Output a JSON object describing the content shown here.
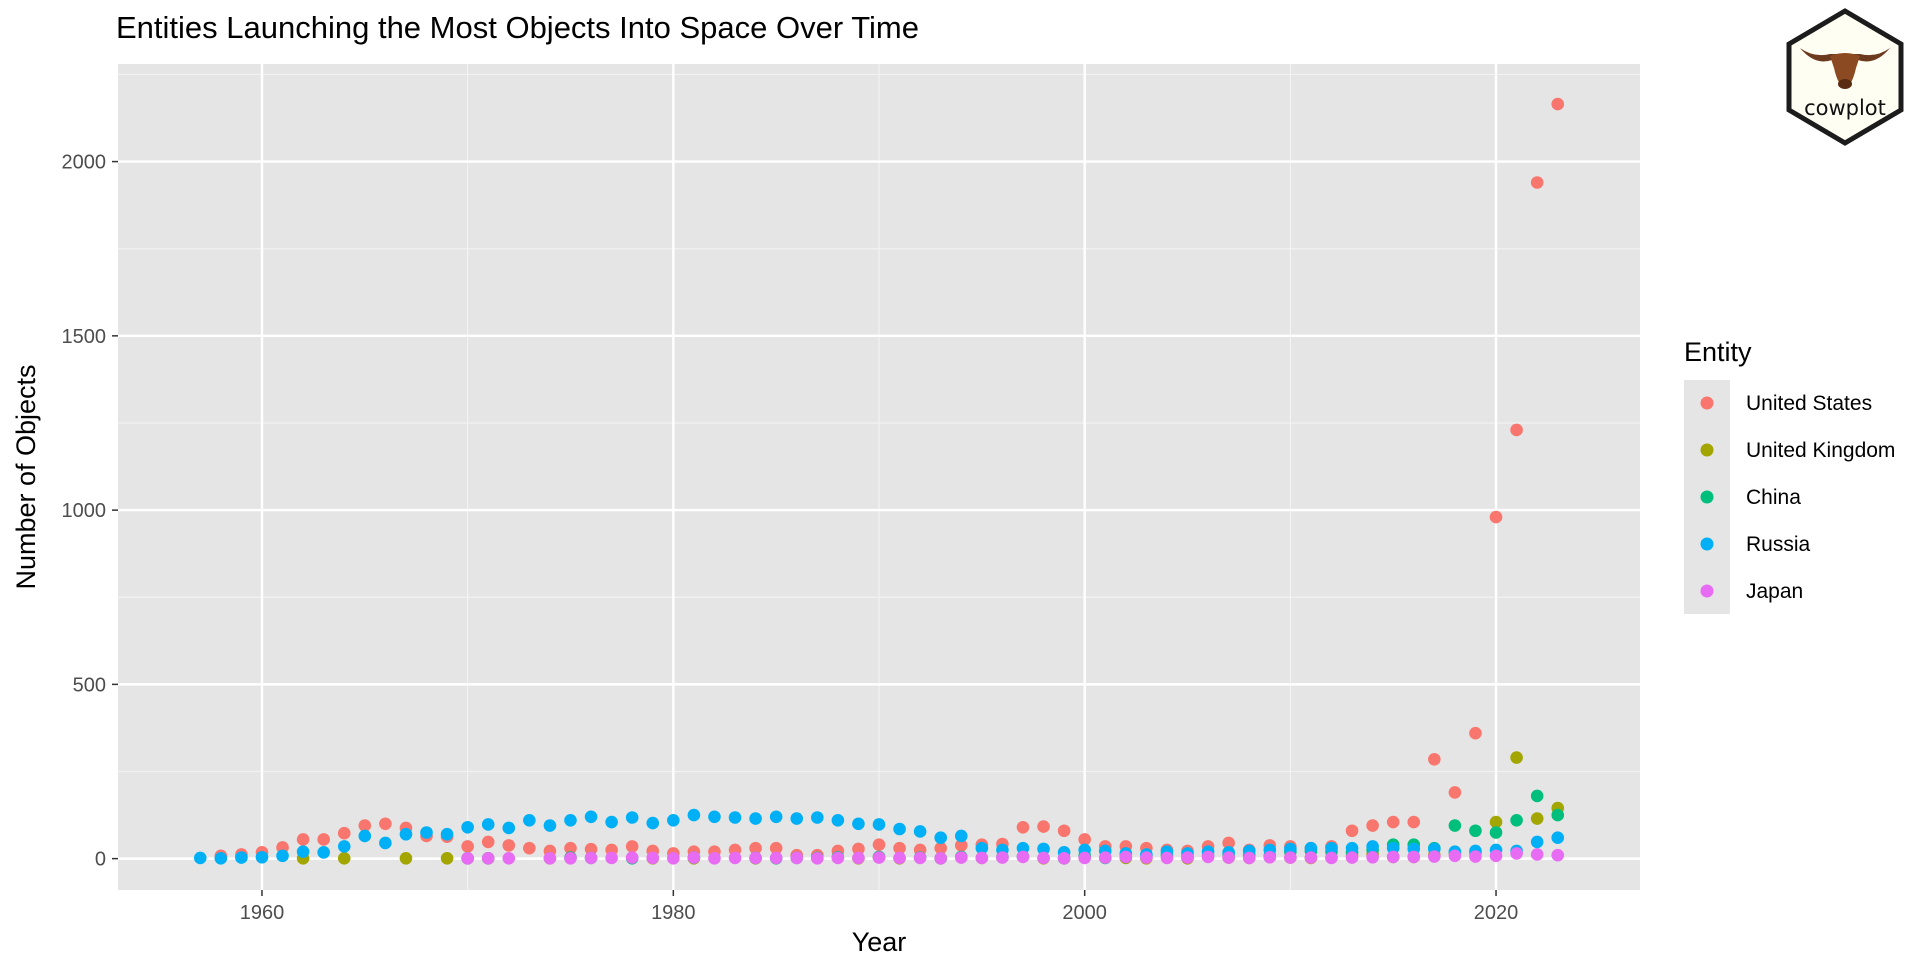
{
  "chart_data": {
    "type": "scatter",
    "title": "Entities Launching the Most Objects Into Space Over Time",
    "xlabel": "Year",
    "ylabel": "Number of Objects",
    "xlim": [
      1953,
      2027
    ],
    "ylim": [
      -90,
      2280
    ],
    "x_ticks": [
      1960,
      1980,
      2000,
      2020
    ],
    "x_tick_labels": [
      "1960",
      "1980",
      "2000",
      "2020"
    ],
    "y_ticks": [
      0,
      500,
      1000,
      1500,
      2000
    ],
    "y_tick_labels": [
      "0",
      "500",
      "1000",
      "1500",
      "2000"
    ],
    "grid": true,
    "legend": {
      "title": "Entity",
      "position": "right"
    },
    "series": [
      {
        "name": "United States",
        "color": "#F8766D",
        "x": [
          1958,
          1959,
          1960,
          1961,
          1962,
          1963,
          1964,
          1965,
          1966,
          1967,
          1968,
          1969,
          1970,
          1971,
          1972,
          1973,
          1974,
          1975,
          1976,
          1977,
          1978,
          1979,
          1980,
          1981,
          1982,
          1983,
          1984,
          1985,
          1986,
          1987,
          1988,
          1989,
          1990,
          1991,
          1992,
          1993,
          1994,
          1995,
          1996,
          1997,
          1998,
          1999,
          2000,
          2001,
          2002,
          2003,
          2004,
          2005,
          2006,
          2007,
          2008,
          2009,
          2010,
          2011,
          2012,
          2013,
          2014,
          2015,
          2016,
          2017,
          2018,
          2019,
          2020,
          2021,
          2022,
          2023
        ],
        "y": [
          8,
          12,
          18,
          32,
          55,
          55,
          73,
          95,
          100,
          88,
          65,
          63,
          35,
          48,
          38,
          30,
          22,
          30,
          27,
          25,
          35,
          22,
          15,
          20,
          20,
          25,
          30,
          30,
          10,
          10,
          22,
          28,
          40,
          30,
          25,
          30,
          38,
          40,
          42,
          90,
          92,
          80,
          55,
          35,
          35,
          30,
          25,
          22,
          35,
          45,
          25,
          38,
          35,
          30,
          35,
          80,
          95,
          105,
          105,
          285,
          190,
          360,
          980,
          1230,
          1940,
          2165
        ]
      },
      {
        "name": "United Kingdom",
        "color": "#A3A500",
        "x": [
          1962,
          1964,
          1967,
          1969,
          1970,
          1971,
          1974,
          1979,
          1981,
          1984,
          1989,
          1990,
          1991,
          1993,
          1995,
          1998,
          1999,
          2000,
          2002,
          2003,
          2005,
          2007,
          2008,
          2009,
          2010,
          2011,
          2012,
          2013,
          2014,
          2015,
          2016,
          2017,
          2018,
          2019,
          2020,
          2021,
          2022,
          2023
        ],
        "y": [
          1,
          1,
          1,
          1,
          1,
          1,
          1,
          1,
          1,
          1,
          1,
          4,
          1,
          1,
          2,
          1,
          1,
          5,
          2,
          1,
          1,
          3,
          2,
          5,
          3,
          2,
          3,
          8,
          12,
          5,
          5,
          10,
          15,
          15,
          105,
          290,
          115,
          145
        ]
      },
      {
        "name": "China",
        "color": "#00BF7D",
        "x": [
          1970,
          1971,
          1975,
          1976,
          1978,
          1981,
          1984,
          1985,
          1986,
          1987,
          1988,
          1990,
          1992,
          1993,
          1994,
          1996,
          1997,
          1999,
          2000,
          2001,
          2002,
          2003,
          2004,
          2005,
          2006,
          2007,
          2008,
          2009,
          2010,
          2011,
          2012,
          2013,
          2014,
          2015,
          2016,
          2017,
          2018,
          2019,
          2020,
          2021,
          2022,
          2023
        ],
        "y": [
          1,
          1,
          3,
          2,
          1,
          3,
          2,
          1,
          2,
          2,
          4,
          5,
          3,
          1,
          5,
          4,
          6,
          1,
          8,
          2,
          5,
          8,
          10,
          6,
          8,
          12,
          10,
          8,
          20,
          22,
          20,
          18,
          25,
          40,
          40,
          30,
          95,
          80,
          75,
          110,
          180,
          125
        ]
      },
      {
        "name": "Russia",
        "color": "#00B0F6",
        "x": [
          1957,
          1958,
          1959,
          1960,
          1961,
          1962,
          1963,
          1964,
          1965,
          1966,
          1967,
          1968,
          1969,
          1970,
          1971,
          1972,
          1973,
          1974,
          1975,
          1976,
          1977,
          1978,
          1979,
          1980,
          1981,
          1982,
          1983,
          1984,
          1985,
          1986,
          1987,
          1988,
          1989,
          1990,
          1991,
          1992,
          1993,
          1994,
          1995,
          1996,
          1997,
          1998,
          1999,
          2000,
          2001,
          2002,
          2003,
          2004,
          2005,
          2006,
          2007,
          2008,
          2009,
          2010,
          2011,
          2012,
          2013,
          2014,
          2015,
          2016,
          2017,
          2018,
          2019,
          2020,
          2021,
          2022,
          2023
        ],
        "y": [
          2,
          1,
          3,
          4,
          8,
          20,
          18,
          35,
          65,
          45,
          70,
          75,
          70,
          90,
          98,
          88,
          110,
          95,
          110,
          120,
          105,
          118,
          102,
          110,
          125,
          120,
          118,
          115,
          120,
          115,
          118,
          110,
          100,
          98,
          85,
          78,
          60,
          65,
          30,
          25,
          30,
          28,
          18,
          25,
          22,
          15,
          12,
          20,
          15,
          20,
          18,
          22,
          25,
          28,
          30,
          30,
          30,
          35,
          30,
          28,
          28,
          20,
          22,
          25,
          22,
          48,
          60
        ]
      },
      {
        "name": "Japan",
        "color": "#E76BF3",
        "x": [
          1970,
          1971,
          1972,
          1974,
          1975,
          1976,
          1977,
          1978,
          1979,
          1980,
          1981,
          1982,
          1983,
          1984,
          1985,
          1986,
          1987,
          1988,
          1989,
          1990,
          1991,
          1992,
          1993,
          1994,
          1995,
          1996,
          1997,
          1998,
          1999,
          2000,
          2001,
          2002,
          2003,
          2004,
          2005,
          2006,
          2007,
          2008,
          2009,
          2010,
          2011,
          2012,
          2013,
          2014,
          2015,
          2016,
          2017,
          2018,
          2019,
          2020,
          2021,
          2022,
          2023
        ],
        "y": [
          1,
          1,
          1,
          1,
          1,
          2,
          2,
          3,
          2,
          1,
          3,
          1,
          2,
          2,
          2,
          2,
          1,
          2,
          2,
          3,
          2,
          2,
          1,
          3,
          2,
          3,
          5,
          2,
          1,
          2,
          3,
          5,
          3,
          2,
          3,
          5,
          3,
          2,
          4,
          3,
          3,
          2,
          3,
          4,
          5,
          5,
          6,
          8,
          6,
          8,
          15,
          12,
          10
        ]
      }
    ]
  },
  "logo": {
    "text": "cowplot"
  }
}
